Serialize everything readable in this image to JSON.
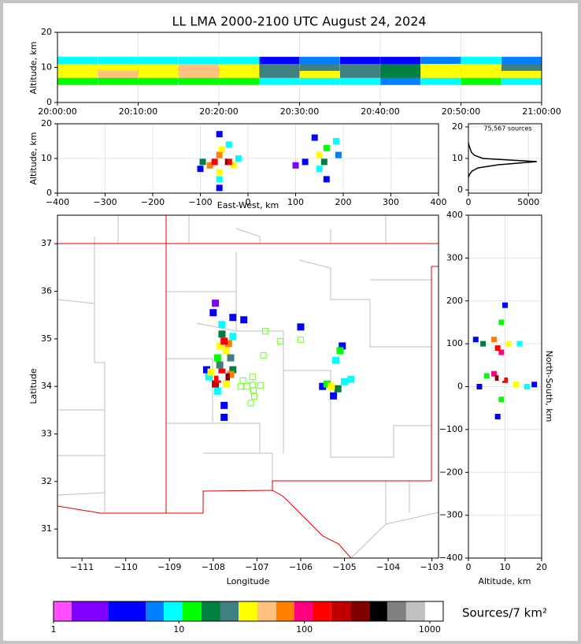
{
  "chart_data": [
    {
      "type": "density",
      "title": "LL LMA 2000-2100 UTC August 24, 2024",
      "ylabel": "Altitude, km",
      "xlim": [
        0,
        60
      ],
      "xticks": [
        {
          "value": 0,
          "label": "20:00:00"
        },
        {
          "value": 10,
          "label": "20:10:00"
        },
        {
          "value": 20,
          "label": "20:20:00"
        },
        {
          "value": 30,
          "label": "20:30:00"
        },
        {
          "value": 40,
          "label": "20:40:00"
        },
        {
          "value": 50,
          "label": "20:50:00"
        },
        {
          "value": 60,
          "label": "21:00:00"
        }
      ],
      "ylim": [
        0,
        20
      ],
      "yticks": [
        0,
        10,
        20
      ],
      "grid": true,
      "points": {
        "x": [
          2.5,
          2.5,
          2.5,
          2.5,
          2.5,
          7.5,
          7.5,
          7.5,
          7.5,
          7.5,
          12.5,
          12.5,
          12.5,
          12.5,
          12.5,
          17.5,
          17.5,
          17.5,
          17.5,
          17.5,
          22.5,
          22.5,
          22.5,
          22.5,
          22.5,
          27.5,
          27.5,
          27.5,
          27.5,
          27.5,
          32.5,
          32.5,
          32.5,
          32.5,
          32.5,
          37.5,
          37.5,
          37.5,
          37.5,
          37.5,
          42.5,
          42.5,
          42.5,
          42.5,
          42.5,
          47.5,
          47.5,
          47.5,
          47.5,
          47.5,
          52.5,
          52.5,
          52.5,
          52.5,
          52.5,
          57.5,
          57.5,
          57.5,
          57.5,
          57.5
        ],
        "y": [
          6,
          12,
          8,
          10,
          9,
          6,
          12,
          8,
          10,
          9,
          6,
          12,
          8,
          10,
          9,
          6,
          12,
          8,
          10,
          9,
          6,
          12,
          8,
          10,
          9,
          6,
          12,
          8,
          10,
          9,
          6,
          12,
          8,
          10,
          9,
          6,
          12,
          8,
          10,
          9,
          6,
          12,
          8,
          10,
          9,
          6,
          12,
          8,
          10,
          9,
          6,
          12,
          8,
          10,
          9,
          6,
          12,
          8,
          10,
          9
        ],
        "counts": [
          12,
          8,
          40,
          35,
          90,
          14,
          9,
          45,
          40,
          110,
          12,
          8,
          42,
          38,
          100,
          15,
          10,
          50,
          45,
          120,
          12,
          9,
          42,
          36,
          100,
          8,
          5,
          25,
          22,
          60,
          9,
          6,
          30,
          26,
          70,
          8,
          5,
          25,
          22,
          60,
          7,
          4,
          20,
          18,
          50,
          10,
          7,
          35,
          30,
          80,
          12,
          8,
          40,
          35,
          90,
          9,
          6,
          30,
          26,
          70
        ]
      }
    },
    {
      "type": "density",
      "xlabel": "East-West, km",
      "ylabel": "Altitude, km",
      "xlim": [
        -400,
        400
      ],
      "xticks": [
        {
          "value": -400,
          "label": "−400"
        },
        {
          "value": -300,
          "label": "−300"
        },
        {
          "value": -200,
          "label": "−200"
        },
        {
          "value": -100,
          "label": "−100"
        },
        0,
        100,
        200,
        300,
        400
      ],
      "ylim": [
        0,
        20
      ],
      "yticks": [
        0,
        10,
        20
      ],
      "grid": true,
      "points": {
        "x": [
          -55,
          -50,
          -70,
          -40,
          -60,
          -55,
          -80,
          -30,
          -95,
          -60,
          -60,
          -60,
          -40,
          -60,
          -100,
          -20,
          150,
          160,
          165,
          185,
          150,
          165,
          190,
          120,
          100,
          140
        ],
        "y": [
          9,
          9,
          9,
          9,
          11,
          12.5,
          8,
          8,
          9,
          6,
          4,
          1.5,
          14,
          17,
          7,
          10,
          11,
          9,
          13,
          15,
          7,
          4,
          11,
          9,
          8,
          16
        ],
        "counts": [
          1000,
          300,
          150,
          150,
          60,
          30,
          60,
          40,
          20,
          30,
          10,
          5,
          10,
          3,
          5,
          10,
          30,
          20,
          15,
          8,
          10,
          5,
          6,
          3,
          2,
          3
        ]
      }
    },
    {
      "type": "line",
      "annotation": "75,567 sources",
      "color": "#000000",
      "xlim": [
        0,
        6100
      ],
      "xticks": [
        0,
        5000
      ],
      "ylim": [
        -1,
        21
      ],
      "yticks": [
        0,
        10,
        20
      ],
      "grid": true,
      "x": [
        0,
        100,
        300,
        800,
        2500,
        5700,
        3000,
        1200,
        500,
        250,
        150,
        60,
        0
      ],
      "y": [
        4,
        5,
        6,
        7,
        8,
        9,
        9.6,
        10,
        11,
        12,
        13,
        14,
        15
      ]
    },
    {
      "type": "map",
      "xlabel": "Longitude",
      "ylabel": "Latitude",
      "xlim": [
        -111.56,
        -102.85
      ],
      "xticks": [
        {
          "value": -111,
          "label": "−111"
        },
        {
          "value": -110,
          "label": "−110"
        },
        {
          "value": -109,
          "label": "−109"
        },
        {
          "value": -108,
          "label": "−108"
        },
        {
          "value": -107,
          "label": "−107"
        },
        {
          "value": -106,
          "label": "−106"
        },
        {
          "value": -105,
          "label": "−105"
        },
        {
          "value": -104,
          "label": "−104"
        },
        {
          "value": -103,
          "label": "−103"
        }
      ],
      "ylim": [
        30.39,
        37.6
      ],
      "yticks": [
        31,
        32,
        33,
        34,
        35,
        36,
        37
      ],
      "points": {
        "x": [
          -107.8,
          -107.7,
          -107.9,
          -107.8,
          -107.95,
          -107.6,
          -108.05,
          -107.7,
          -107.55,
          -108.1,
          -107.85,
          -107.9,
          -107.75,
          -107.75,
          -108.15,
          -107.75,
          -107.65,
          -107.85,
          -107.8,
          -107.7,
          -107.8,
          -108.0,
          -107.95,
          -107.55,
          -107.6,
          -107.9,
          -105.3,
          -105.4,
          -105.15,
          -105.0,
          -105.25,
          -104.85,
          -105.5,
          -105.1,
          -105.2,
          -105.05,
          -106.0,
          -107.3,
          -107.55
        ],
        "y": [
          34.2,
          34.2,
          34.15,
          34.3,
          34.05,
          34.25,
          34.3,
          34.05,
          34.35,
          34.2,
          34.45,
          33.9,
          33.6,
          33.35,
          34.35,
          34.95,
          34.9,
          34.85,
          35.1,
          34.75,
          35.3,
          35.55,
          35.75,
          35.05,
          34.6,
          34.6,
          34.0,
          34.05,
          33.95,
          34.1,
          33.8,
          34.15,
          34.0,
          34.75,
          34.55,
          34.85,
          35.25,
          35.4,
          35.45
        ],
        "counts": [
          1000,
          300,
          150,
          120,
          200,
          60,
          30,
          40,
          20,
          10,
          25,
          8,
          5,
          3,
          4,
          150,
          60,
          40,
          20,
          30,
          8,
          3,
          2,
          10,
          25,
          15,
          30,
          15,
          20,
          10,
          5,
          8,
          4,
          15,
          8,
          4,
          3,
          3,
          5
        ]
      },
      "stations": {
        "lon": [
          -106.81,
          -106.47,
          -106.0,
          -106.85,
          -107.1,
          -107.32,
          -107.1,
          -107.37,
          -107.23,
          -106.92,
          -107.08,
          -107.06,
          -107.14
        ],
        "lat": [
          35.16,
          34.95,
          34.98,
          34.65,
          34.2,
          34.12,
          34.03,
          34.0,
          34.0,
          34.02,
          33.92,
          33.79,
          33.65
        ]
      },
      "station_color": "#80ff40",
      "border_color": "#e00000"
    },
    {
      "type": "density",
      "xlabel": "Altitude, km",
      "ylabel": "North-South, km",
      "xlim": [
        0,
        20
      ],
      "xticks": [
        0,
        10,
        20
      ],
      "ylim": [
        -400,
        400
      ],
      "yticks": [
        {
          "value": -400,
          "label": "−400"
        },
        {
          "value": -300,
          "label": "−300"
        },
        {
          "value": -200,
          "label": "−200"
        },
        {
          "value": -100,
          "label": "−100"
        },
        0,
        100,
        200,
        300,
        400
      ],
      "grid": true,
      "points": {
        "x": [
          9,
          8,
          10,
          7,
          8,
          7,
          9,
          11,
          4,
          14,
          13,
          5,
          16,
          3,
          9,
          9,
          8,
          10,
          2,
          18
        ],
        "y": [
          20,
          20,
          15,
          30,
          90,
          110,
          80,
          100,
          100,
          100,
          5,
          25,
          0,
          0,
          150,
          -30,
          -70,
          190,
          110,
          5
        ],
        "counts": [
          1000,
          300,
          150,
          100,
          150,
          60,
          100,
          40,
          20,
          10,
          30,
          15,
          10,
          5,
          15,
          15,
          5,
          3,
          4,
          3
        ]
      }
    }
  ],
  "colorbar": {
    "label": "Sources/7 km²",
    "scale": "log",
    "bounds": [
      1,
      1.39,
      2.75,
      5.43,
      7.56,
      10.7,
      15.1,
      21.4,
      29.9,
      42.2,
      59.6,
      83.3,
      117,
      164,
      233,
      330,
      458,
      648,
      917,
      1280
    ],
    "colors": [
      "#ff4dff",
      "#8000ff",
      "#0000ff",
      "#0080ff",
      "#00ffff",
      "#00ff00",
      "#008040",
      "#408080",
      "#ffff00",
      "#ffc080",
      "#ff8000",
      "#ff0080",
      "#ff0000",
      "#c00000",
      "#800000",
      "#000000",
      "#808080",
      "#c0c0c0",
      "#ffffff"
    ],
    "ticks": [
      1,
      10,
      100,
      1000
    ]
  }
}
